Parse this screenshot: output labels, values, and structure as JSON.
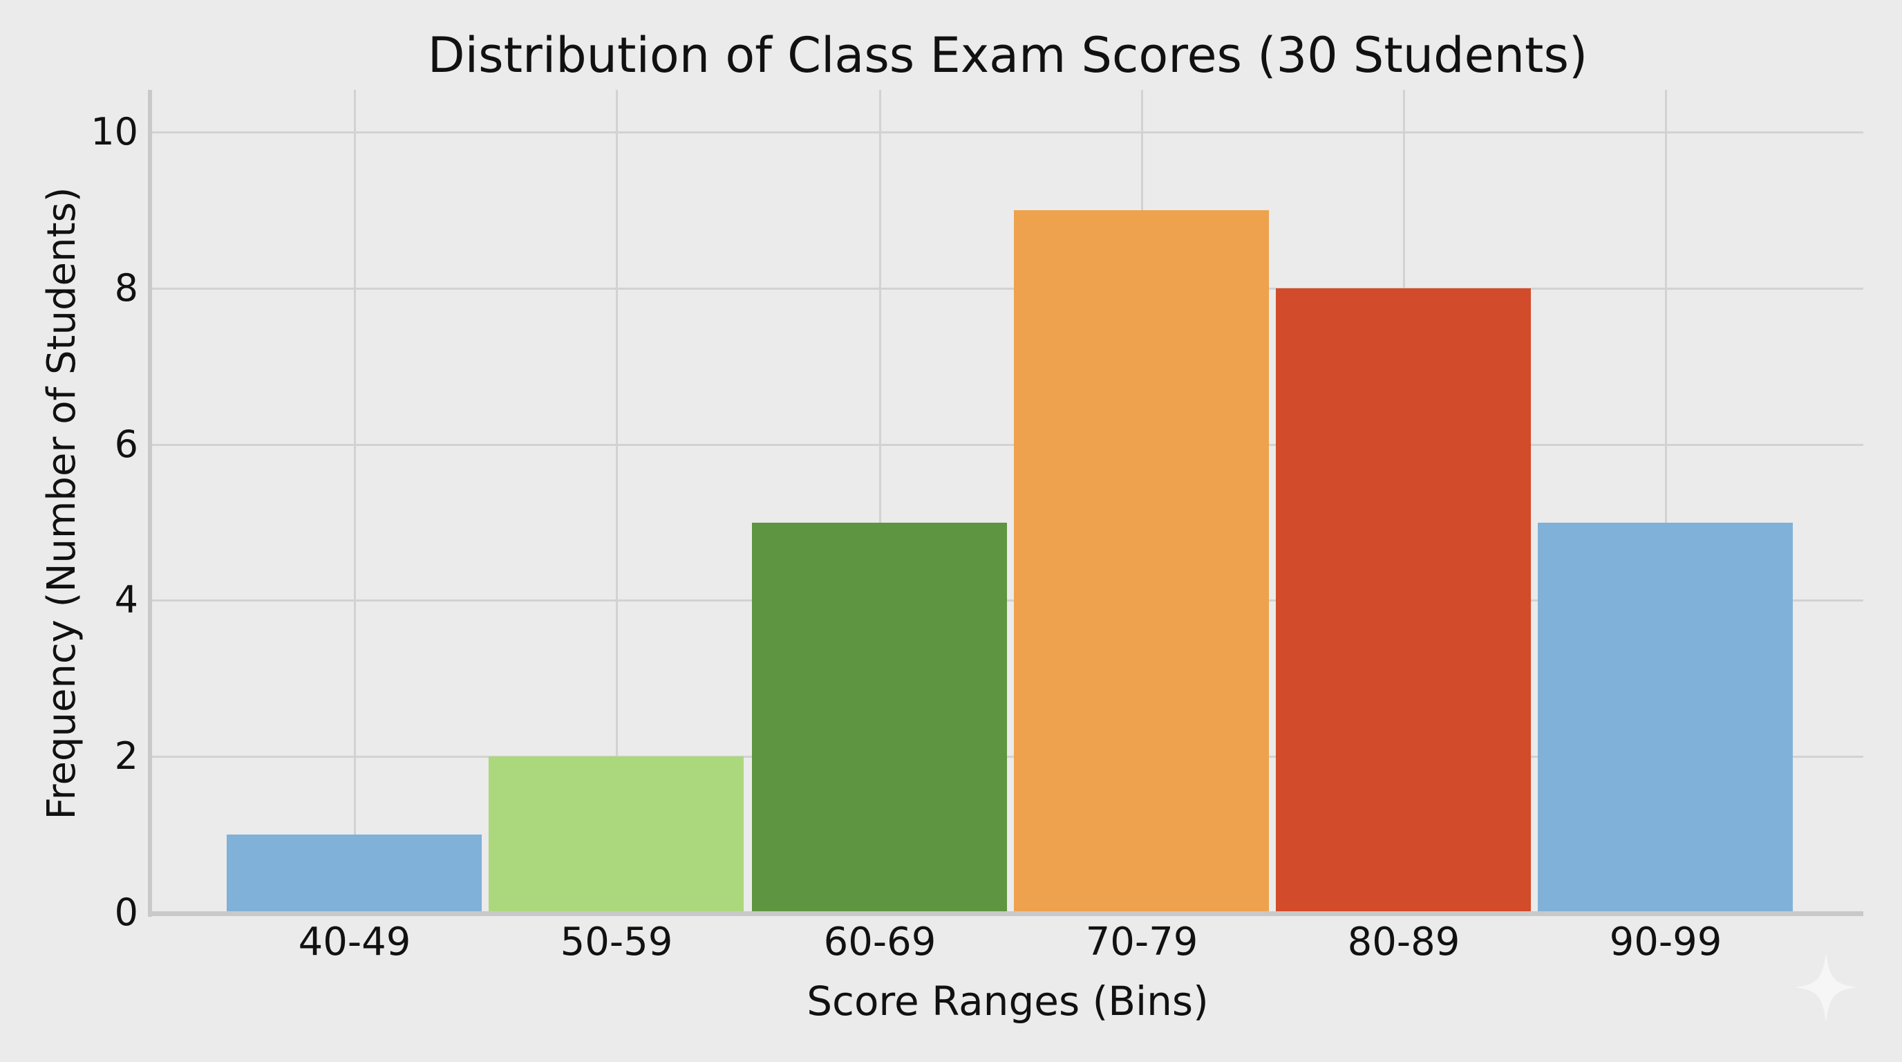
{
  "chart_data": {
    "type": "bar",
    "title": "Distribution of Class Exam Scores (30 Students)",
    "xlabel": "Score Ranges (Bins)",
    "ylabel": "Frequency (Number of Students)",
    "categories": [
      "40-49",
      "50-59",
      "60-69",
      "70-79",
      "80-89",
      "90-99"
    ],
    "values": [
      1,
      2,
      5,
      9,
      8,
      5
    ],
    "colors": [
      "#80b1d8",
      "#acd87d",
      "#5e9540",
      "#eea24e",
      "#d24b2b",
      "#80b1d8"
    ],
    "ylim": [
      0,
      10.5
    ],
    "yticks": [
      0,
      2,
      4,
      6,
      8,
      10
    ],
    "grid": true,
    "legend": null
  },
  "watermark": {
    "icon": "sparkle-icon"
  }
}
